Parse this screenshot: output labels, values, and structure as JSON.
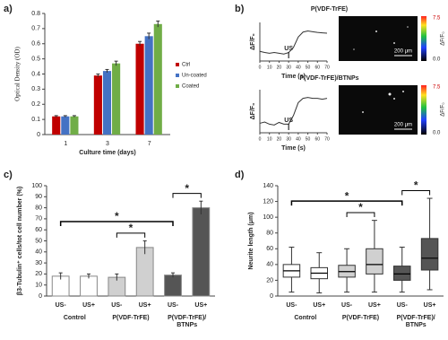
{
  "chart_data": [
    {
      "type": "bar",
      "panel_label": "a)",
      "xlabel": "Culture time (days)",
      "ylabel": "Optical Density (OD)",
      "categories": [
        "1",
        "3",
        "7"
      ],
      "series": [
        {
          "name": "Ctrl",
          "color": "#c00000",
          "values": [
            0.12,
            0.39,
            0.6
          ],
          "errors": [
            0.005,
            0.01,
            0.015
          ]
        },
        {
          "name": "Un-coated",
          "color": "#4472c4",
          "values": [
            0.12,
            0.42,
            0.65
          ],
          "errors": [
            0.005,
            0.01,
            0.02
          ]
        },
        {
          "name": "Coated",
          "color": "#70ad47",
          "values": [
            0.12,
            0.47,
            0.73
          ],
          "errors": [
            0.005,
            0.015,
            0.02
          ]
        }
      ],
      "ylim": [
        0,
        0.8
      ],
      "yticks": [
        0,
        0.1,
        0.2,
        0.3,
        0.4,
        0.5,
        0.6,
        0.7,
        0.8
      ]
    },
    {
      "type": "line",
      "panel_label": "b)",
      "title": "P(VDF-TrFE)",
      "xlabel": "Time (s)",
      "ylabel": "ΔF/F₀",
      "x": [
        0,
        5,
        10,
        15,
        20,
        25,
        30,
        35,
        40,
        45,
        50,
        55,
        60,
        65,
        70
      ],
      "values": [
        0.25,
        0.22,
        0.2,
        0.22,
        0.2,
        0.18,
        0.22,
        0.35,
        0.62,
        0.75,
        0.78,
        0.76,
        0.74,
        0.73,
        0.72
      ],
      "color": "#333333",
      "xlim": [
        0,
        70
      ],
      "xticks": [
        0,
        10,
        20,
        30,
        40,
        50,
        60,
        70
      ],
      "ylim": [
        0,
        1
      ],
      "annotation": {
        "text": "US",
        "x": 30
      },
      "image": {
        "scale_bar": "200 μm",
        "colorbar_labels": [
          "7.5",
          "0.0"
        ],
        "colorbar_title": "ΔF/F₀"
      }
    },
    {
      "type": "line",
      "title": "P(VDF-TrFE)/BTNPs",
      "xlabel": "Time (s)",
      "ylabel": "ΔF/F₀",
      "x": [
        0,
        5,
        10,
        15,
        20,
        25,
        30,
        35,
        40,
        45,
        50,
        55,
        60,
        65,
        70
      ],
      "values": [
        0.22,
        0.25,
        0.2,
        0.18,
        0.24,
        0.2,
        0.2,
        0.4,
        0.7,
        0.8,
        0.82,
        0.8,
        0.8,
        0.78,
        0.8
      ],
      "color": "#333333",
      "xlim": [
        0,
        70
      ],
      "xticks": [
        0,
        10,
        20,
        30,
        40,
        50,
        60,
        70
      ],
      "ylim": [
        0,
        1
      ],
      "annotation": {
        "text": "US",
        "x": 30
      },
      "image": {
        "scale_bar": "200 μm",
        "colorbar_labels": [
          "7.5",
          "0.0"
        ],
        "colorbar_title": "ΔF/F₀"
      }
    },
    {
      "type": "bar",
      "panel_label": "c)",
      "ylabel": "β3-Tubulin⁺ cells/tot cell number (%)",
      "categories": [
        "US-",
        "US+",
        "US-",
        "US+",
        "US-",
        "US+"
      ],
      "groups": [
        "Control",
        "P(VDF-TrFE)",
        "P(VDF-TrFE)/BTNPs"
      ],
      "values": [
        18,
        18,
        17,
        44,
        19,
        80
      ],
      "errors": [
        3,
        2,
        3,
        6,
        2,
        6
      ],
      "colors": [
        "#ffffff",
        "#ffffff",
        "#d0d0d0",
        "#d0d0d0",
        "#555555",
        "#555555"
      ],
      "ylim": [
        0,
        100
      ],
      "yticks": [
        0,
        10,
        20,
        30,
        40,
        50,
        60,
        70,
        80,
        90,
        100
      ],
      "significance": [
        {
          "label": "*",
          "pair": [
            2,
            3
          ]
        },
        {
          "label": "*",
          "pair": [
            4,
            5
          ]
        },
        {
          "label": "*",
          "pair": [
            0,
            4
          ]
        }
      ]
    },
    {
      "type": "box",
      "panel_label": "d)",
      "ylabel": "Neurite length (μm)",
      "categories": [
        "US-",
        "US+",
        "US-",
        "US+",
        "US-",
        "US+"
      ],
      "groups": [
        "Control",
        "P(VDF-TrFE)",
        "P(VDF-TrFE)/BTNPs"
      ],
      "boxes": [
        {
          "min": 5,
          "q1": 24,
          "median": 32,
          "q3": 40,
          "max": 62
        },
        {
          "min": 4,
          "q1": 22,
          "median": 29,
          "q3": 36,
          "max": 55
        },
        {
          "min": 5,
          "q1": 24,
          "median": 31,
          "q3": 39,
          "max": 60
        },
        {
          "min": 5,
          "q1": 28,
          "median": 40,
          "q3": 60,
          "max": 96
        },
        {
          "min": 5,
          "q1": 20,
          "median": 28,
          "q3": 38,
          "max": 62
        },
        {
          "min": 8,
          "q1": 33,
          "median": 48,
          "q3": 73,
          "max": 124
        }
      ],
      "colors": [
        "#ffffff",
        "#ffffff",
        "#d0d0d0",
        "#d0d0d0",
        "#555555",
        "#555555"
      ],
      "ylim": [
        0,
        140
      ],
      "yticks": [
        0,
        20,
        40,
        60,
        80,
        100,
        120,
        140
      ],
      "significance": [
        {
          "label": "*",
          "pair": [
            2,
            3
          ]
        },
        {
          "label": "*",
          "pair": [
            4,
            5
          ]
        },
        {
          "label": "*",
          "pair": [
            0,
            4
          ]
        }
      ]
    }
  ]
}
